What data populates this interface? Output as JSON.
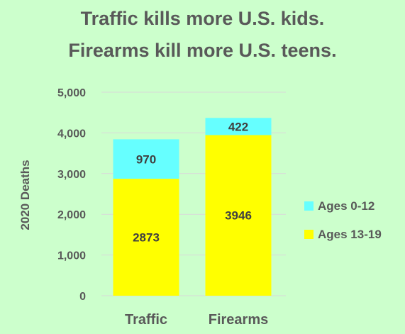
{
  "chart_data": {
    "type": "bar",
    "stacked": true,
    "title_lines": [
      "Traffic kills more U.S. kids.",
      "Firearms kill more U.S. teens."
    ],
    "xlabel": "",
    "ylabel": "2020 Deaths",
    "categories": [
      "Traffic",
      "Firearms"
    ],
    "series": [
      {
        "name": "Ages 13-19",
        "values": [
          2873,
          3946
        ],
        "color": "#ffff00"
      },
      {
        "name": "Ages 0-12",
        "values": [
          970,
          422
        ],
        "color": "#66ffff"
      }
    ],
    "ylim": [
      0,
      5000
    ],
    "yticks": [
      0,
      1000,
      2000,
      3000,
      4000,
      5000
    ],
    "ytick_labels": [
      "0",
      "1,000",
      "2,000",
      "3,000",
      "4,000",
      "5,000"
    ],
    "grid": true,
    "legend_position": "right",
    "legend_order": [
      "Ages 0-12",
      "Ages 13-19"
    ],
    "background": "#ccffcc",
    "gridline_color": "#d9d9d9",
    "text_color": "#595959"
  }
}
